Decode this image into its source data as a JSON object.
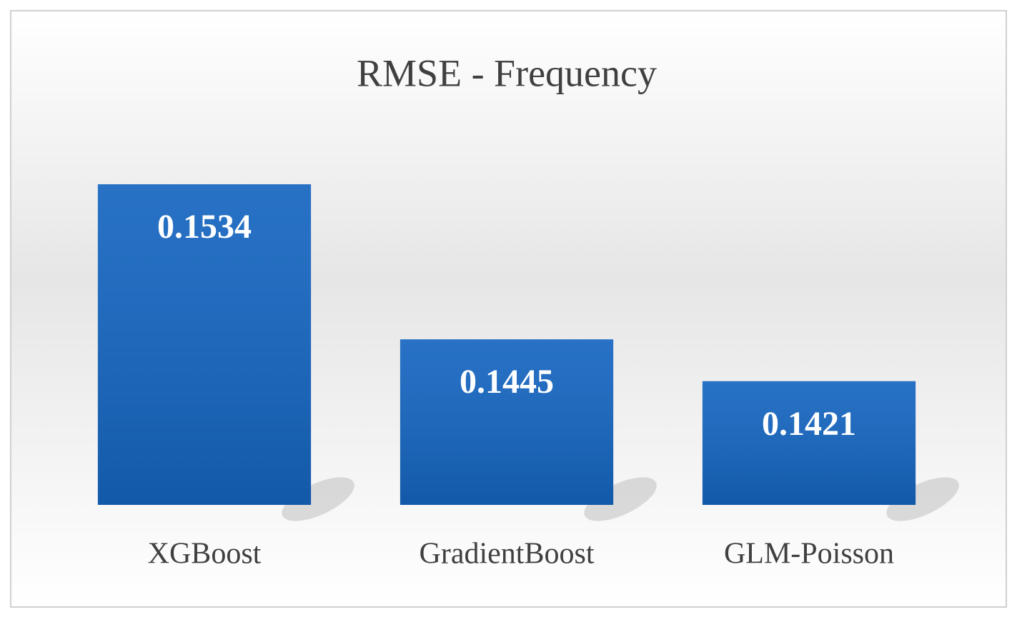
{
  "chart_data": {
    "type": "bar",
    "title": "RMSE - Frequency",
    "categories": [
      "XGBoost",
      "GradientBoost",
      "GLM-Poisson"
    ],
    "values": [
      0.1534,
      0.1445,
      0.1421
    ],
    "color": "#1565c0",
    "ylim": [
      0.135,
      0.155
    ]
  }
}
